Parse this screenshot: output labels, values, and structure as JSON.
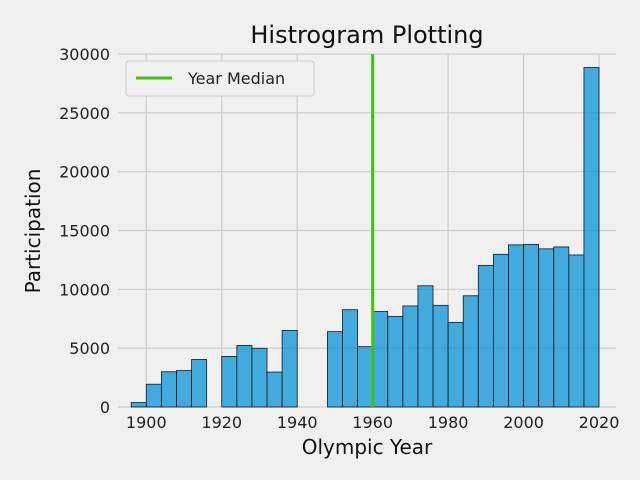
{
  "chart_data": {
    "type": "bar",
    "title": "Histrogram Plotting",
    "xlabel": "Olympic Year",
    "ylabel": "Participation",
    "xlim": [
      1892.5,
      2024.5
    ],
    "ylim": [
      0,
      30000
    ],
    "xticks": [
      1900,
      1920,
      1940,
      1960,
      1980,
      2000,
      2020
    ],
    "yticks": [
      0,
      5000,
      10000,
      15000,
      20000,
      25000,
      30000
    ],
    "grid": true,
    "bin_width": 4,
    "bins": [
      {
        "x0": 1896,
        "value": 380
      },
      {
        "x0": 1900,
        "value": 1936
      },
      {
        "x0": 1904,
        "value": 3000
      },
      {
        "x0": 1908,
        "value": 3100
      },
      {
        "x0": 1912,
        "value": 4040
      },
      {
        "x0": 1920,
        "value": 4300
      },
      {
        "x0": 1924,
        "value": 5233
      },
      {
        "x0": 1928,
        "value": 4992
      },
      {
        "x0": 1932,
        "value": 2969
      },
      {
        "x0": 1936,
        "value": 6506
      },
      {
        "x0": 1948,
        "value": 6405
      },
      {
        "x0": 1952,
        "value": 8270
      },
      {
        "x0": 1956,
        "value": 5127
      },
      {
        "x0": 1960,
        "value": 8119
      },
      {
        "x0": 1964,
        "value": 7702
      },
      {
        "x0": 1968,
        "value": 8588
      },
      {
        "x0": 1972,
        "value": 10304
      },
      {
        "x0": 1976,
        "value": 8641
      },
      {
        "x0": 1980,
        "value": 7191
      },
      {
        "x0": 1984,
        "value": 9454
      },
      {
        "x0": 1988,
        "value": 12037
      },
      {
        "x0": 1992,
        "value": 12977
      },
      {
        "x0": 1996,
        "value": 13780
      },
      {
        "x0": 2000,
        "value": 13821
      },
      {
        "x0": 2004,
        "value": 13443
      },
      {
        "x0": 2008,
        "value": 13602
      },
      {
        "x0": 2012,
        "value": 12920
      },
      {
        "x0": 2016,
        "value": 28850
      }
    ],
    "median_line": {
      "label": "Year Median",
      "x": 1960
    },
    "legend_position": "upper-left",
    "colors": {
      "bar_fill": "#008fd5",
      "bar_edge": "#1a1a1a",
      "median": "#3fc30f",
      "grid": "#cbcbcb",
      "background": "#f0f0f0"
    }
  }
}
